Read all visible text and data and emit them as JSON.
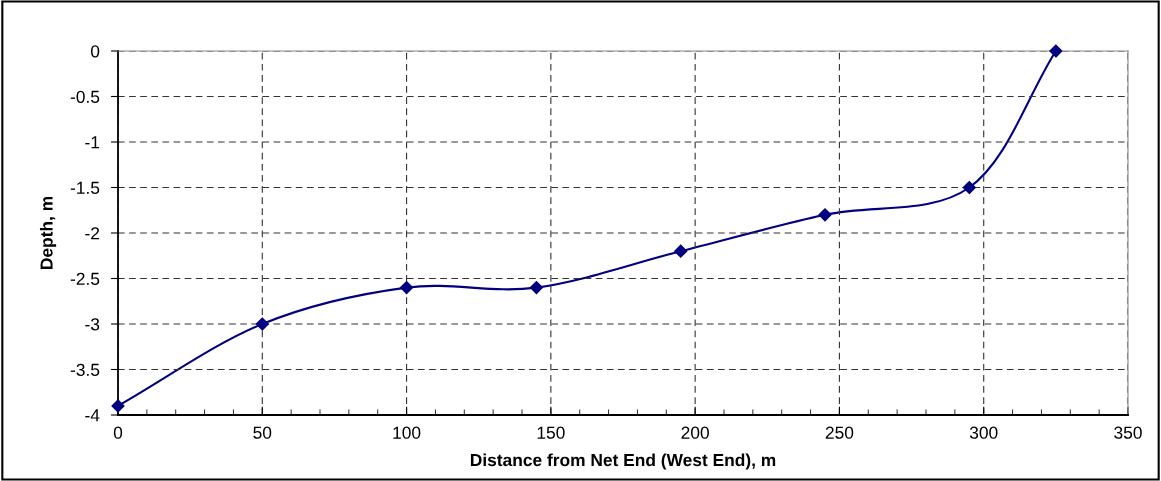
{
  "chart_data": {
    "type": "line",
    "xlabel": "Distance from Net End (West End), m",
    "ylabel": "Depth, m",
    "x": [
      0,
      50,
      100,
      145,
      195,
      245,
      295,
      325
    ],
    "series": [
      {
        "color": "#000080",
        "values": [
          -3.9,
          -3,
          -2.6,
          -2.6,
          -2.2,
          -1.8,
          -1.5,
          0
        ]
      }
    ],
    "xlim": [
      0,
      350
    ],
    "xticks": [
      0,
      50,
      100,
      150,
      200,
      250,
      300,
      350
    ],
    "ylim": [
      -4,
      0
    ],
    "yticks": [
      -4,
      -3.5,
      -3,
      -2.5,
      -2,
      -1.5,
      -1,
      -0.5,
      0
    ],
    "grid": true,
    "marker": "diamond",
    "line_style": "solid"
  }
}
